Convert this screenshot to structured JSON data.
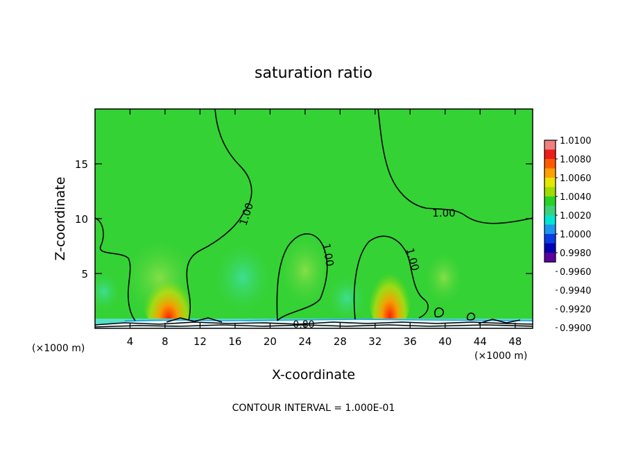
{
  "chart_data": {
    "type": "heatmap",
    "title": "saturation ratio",
    "xlabel": "X-coordinate",
    "ylabel": "Z-coordinate",
    "x_unit_left": "(×1000 m)",
    "x_unit_right": "(×1000 m)",
    "xlim": [
      0,
      50
    ],
    "ylim": [
      0,
      20
    ],
    "x_ticks": [
      {
        "value": 4,
        "label": "4"
      },
      {
        "value": 8,
        "label": "8"
      },
      {
        "value": 12,
        "label": "12"
      },
      {
        "value": 16,
        "label": "16"
      },
      {
        "value": 20,
        "label": "20"
      },
      {
        "value": 24,
        "label": "24"
      },
      {
        "value": 28,
        "label": "28"
      },
      {
        "value": 32,
        "label": "32"
      },
      {
        "value": 36,
        "label": "36"
      },
      {
        "value": 40,
        "label": "40"
      },
      {
        "value": 44,
        "label": "44"
      },
      {
        "value": 48,
        "label": "48"
      }
    ],
    "y_ticks": [
      {
        "value": 5,
        "label": "5"
      },
      {
        "value": 10,
        "label": "10"
      },
      {
        "value": 15,
        "label": "15"
      }
    ],
    "colorbar": [
      {
        "label": "1.0100",
        "color": "#f08080"
      },
      {
        "label": "1.0080",
        "color": "#ee1c1c"
      },
      {
        "label": "1.0060",
        "color": "#ff5a00"
      },
      {
        "label": "1.0040",
        "color": "#ffa000"
      },
      {
        "label": "1.0020",
        "color": "#e6e600"
      },
      {
        "label": "1.0000",
        "color": "#a0dc00"
      },
      {
        "label": "0.9980",
        "color": "#28d228"
      },
      {
        "label": "0.9960",
        "color": "#3cd278"
      },
      {
        "label": "0.9940",
        "color": "#00e6d2"
      },
      {
        "label": "0.9920",
        "color": "#1e96f0"
      },
      {
        "label": "0.9900",
        "color": "#0a3ce6"
      },
      {
        "label": "",
        "color": "#0000b4"
      },
      {
        "label": "",
        "color": "#5a00a0"
      }
    ],
    "background_field_value": 1.0,
    "features": [
      {
        "x": 9.5,
        "z": 1,
        "value_max": 1.008,
        "note": "hot spot"
      },
      {
        "x": 33.5,
        "z": 2,
        "value_max": 1.008,
        "note": "hot spot"
      }
    ],
    "contour_labels": [
      {
        "text": "1.00",
        "x": 17.5,
        "z": 10.5
      },
      {
        "text": "1.00",
        "x": 40.3,
        "z": 10.5
      },
      {
        "text": "1.00",
        "x": 26.2,
        "z": 7.5
      },
      {
        "text": "1.00",
        "x": 36.4,
        "z": 6.5
      },
      {
        "text": "0.80",
        "x": 24.5,
        "z": 0.4
      }
    ],
    "footer": "CONTOUR INTERVAL = 1.000E-01"
  }
}
